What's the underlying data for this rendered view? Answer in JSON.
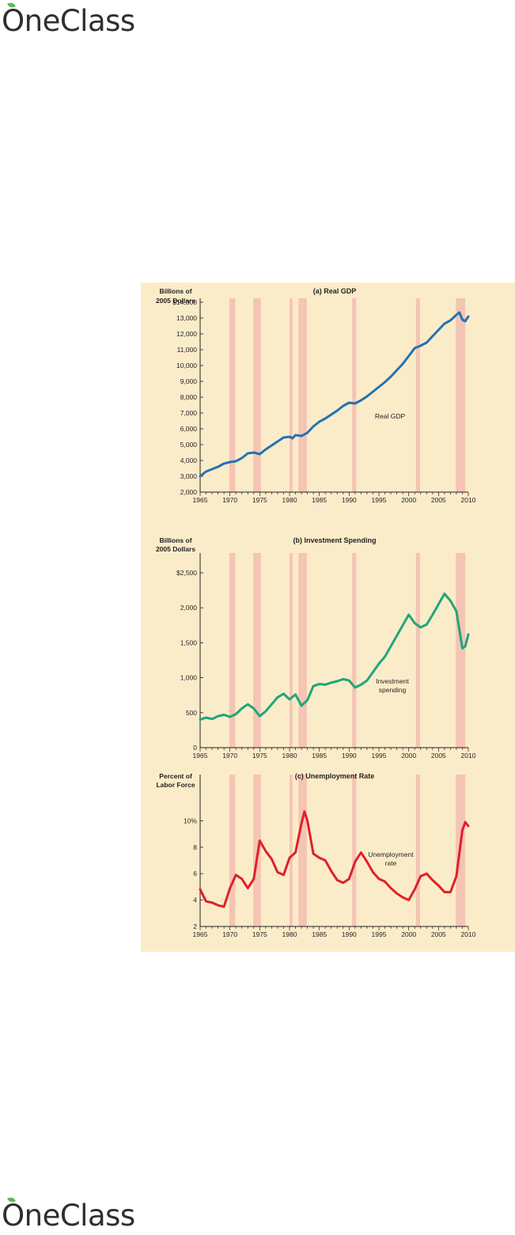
{
  "logo": {
    "text": "OneClass"
  },
  "colors": {
    "panel_bg": "#fbecc9",
    "recession": "#f6c4b4",
    "gdp": "#2272b4",
    "investment": "#1fa67a",
    "unemployment": "#e0202a"
  },
  "recessions": [
    [
      1969.9,
      1970.9
    ],
    [
      1973.9,
      1975.2
    ],
    [
      1980.0,
      1980.5
    ],
    [
      1981.5,
      1982.9
    ],
    [
      1990.5,
      1991.2
    ],
    [
      2001.2,
      2001.9
    ],
    [
      2007.9,
      2009.5
    ]
  ],
  "chart_data": [
    {
      "type": "line",
      "title": "(a) Real GDP",
      "ylabel_lines": [
        "Billions of",
        "2005 Dollars"
      ],
      "annotation": [
        "Real GDP"
      ],
      "xlim": [
        1965,
        2010
      ],
      "ylim": [
        2000,
        14000
      ],
      "x_ticks": [
        "1965",
        "1970",
        "1975",
        "1980",
        "1985",
        "1990",
        "1995",
        "2000",
        "2005",
        "2010"
      ],
      "y_ticks": [
        {
          "value": 2000,
          "label": "2,000"
        },
        {
          "value": 3000,
          "label": "3,000"
        },
        {
          "value": 4000,
          "label": "4,000"
        },
        {
          "value": 5000,
          "label": "5,000"
        },
        {
          "value": 6000,
          "label": "6,000"
        },
        {
          "value": 7000,
          "label": "7,000"
        },
        {
          "value": 8000,
          "label": "8,000"
        },
        {
          "value": 9000,
          "label": "9,000"
        },
        {
          "value": 10000,
          "label": "10,000"
        },
        {
          "value": 11000,
          "label": "11,000"
        },
        {
          "value": 12000,
          "label": "12,000"
        },
        {
          "value": 13000,
          "label": "13,000"
        },
        {
          "value": 14000,
          "label": "$14,000"
        }
      ],
      "series": [
        {
          "color": "#2272b4",
          "x": [
            1965,
            1966,
            1967,
            1968,
            1969,
            1970,
            1971,
            1972,
            1973,
            1974,
            1975,
            1976,
            1977,
            1978,
            1979,
            1980,
            1980.5,
            1981,
            1982,
            1983,
            1984,
            1985,
            1986,
            1987,
            1988,
            1989,
            1990,
            1991,
            1992,
            1993,
            1994,
            1995,
            1996,
            1997,
            1998,
            1999,
            2000,
            2001,
            2002,
            2003,
            2004,
            2005,
            2006,
            2007,
            2008,
            2008.5,
            2009,
            2009.5,
            2010
          ],
          "y": [
            3000,
            3300,
            3450,
            3600,
            3800,
            3900,
            3950,
            4150,
            4450,
            4500,
            4400,
            4700,
            4950,
            5200,
            5450,
            5500,
            5400,
            5600,
            5550,
            5750,
            6150,
            6450,
            6650,
            6900,
            7150,
            7450,
            7650,
            7600,
            7800,
            8050,
            8350,
            8650,
            8950,
            9300,
            9700,
            10100,
            10600,
            11100,
            11250,
            11450,
            11850,
            12250,
            12650,
            12850,
            13200,
            13350,
            12900,
            12800,
            13100
          ]
        }
      ]
    },
    {
      "type": "line",
      "title": "(b) Investment Spending",
      "ylabel_lines": [
        "Billions of",
        "2005 Dollars"
      ],
      "annotation": [
        "Investment",
        "spending"
      ],
      "xlim": [
        1965,
        2010
      ],
      "ylim": [
        0,
        2500
      ],
      "x_ticks": [
        "1965",
        "1970",
        "1975",
        "1980",
        "1985",
        "1990",
        "1995",
        "2000",
        "2005",
        "2010"
      ],
      "y_ticks": [
        {
          "value": 0,
          "label": "0"
        },
        {
          "value": 500,
          "label": "500"
        },
        {
          "value": 1000,
          "label": "1,000"
        },
        {
          "value": 1500,
          "label": "1,500"
        },
        {
          "value": 2000,
          "label": "2,000"
        },
        {
          "value": 2500,
          "label": "$2,500"
        }
      ],
      "series": [
        {
          "color": "#1fa67a",
          "x": [
            1965,
            1966,
            1967,
            1968,
            1969,
            1970,
            1971,
            1972,
            1973,
            1974,
            1975,
            1976,
            1977,
            1978,
            1979,
            1980,
            1981,
            1982,
            1983,
            1984,
            1985,
            1986,
            1987,
            1988,
            1989,
            1990,
            1991,
            1992,
            1993,
            1994,
            1995,
            1996,
            1997,
            1998,
            1999,
            2000,
            2001,
            2002,
            2003,
            2004,
            2005,
            2006,
            2007,
            2008,
            2009,
            2009.5,
            2010
          ],
          "y": [
            400,
            430,
            410,
            450,
            470,
            440,
            480,
            560,
            620,
            560,
            450,
            520,
            620,
            720,
            770,
            690,
            760,
            600,
            680,
            880,
            910,
            900,
            930,
            950,
            980,
            960,
            860,
            900,
            960,
            1080,
            1200,
            1300,
            1450,
            1600,
            1750,
            1900,
            1780,
            1720,
            1760,
            1900,
            2050,
            2200,
            2100,
            1950,
            1420,
            1450,
            1620
          ]
        }
      ]
    },
    {
      "type": "line",
      "title": "(c) Unemployment Rate",
      "ylabel_lines": [
        "Percent of",
        "Labor Force"
      ],
      "annotation": [
        "Unemployment",
        "rate"
      ],
      "xlim": [
        1965,
        2010
      ],
      "ylim": [
        2,
        12
      ],
      "x_ticks": [
        "1965",
        "1970",
        "1975",
        "1980",
        "1985",
        "1990",
        "1995",
        "2000",
        "2005",
        "2010"
      ],
      "y_ticks": [
        {
          "value": 2,
          "label": "2"
        },
        {
          "value": 4,
          "label": "4"
        },
        {
          "value": 6,
          "label": "6"
        },
        {
          "value": 8,
          "label": "8"
        },
        {
          "value": 10,
          "label": "10%"
        }
      ],
      "series": [
        {
          "color": "#e0202a",
          "x": [
            1965,
            1966,
            1967,
            1968,
            1969,
            1970,
            1971,
            1972,
            1973,
            1974,
            1975,
            1976,
            1977,
            1978,
            1979,
            1980,
            1981,
            1982,
            1982.5,
            1983,
            1984,
            1985,
            1986,
            1987,
            1988,
            1989,
            1990,
            1991,
            1992,
            1993,
            1994,
            1995,
            1996,
            1997,
            1998,
            1999,
            2000,
            2001,
            2002,
            2003,
            2004,
            2005,
            2006,
            2007,
            2008,
            2009,
            2009.5,
            2010
          ],
          "y": [
            4.8,
            3.9,
            3.8,
            3.6,
            3.5,
            4.9,
            5.9,
            5.6,
            4.9,
            5.6,
            8.5,
            7.7,
            7.1,
            6.1,
            5.9,
            7.2,
            7.6,
            9.8,
            10.7,
            10.0,
            7.5,
            7.2,
            7.0,
            6.2,
            5.5,
            5.3,
            5.6,
            6.9,
            7.6,
            6.9,
            6.1,
            5.6,
            5.4,
            4.9,
            4.5,
            4.2,
            4.0,
            4.8,
            5.8,
            6.0,
            5.5,
            5.1,
            4.6,
            4.6,
            5.8,
            9.3,
            9.9,
            9.6
          ]
        }
      ]
    }
  ]
}
